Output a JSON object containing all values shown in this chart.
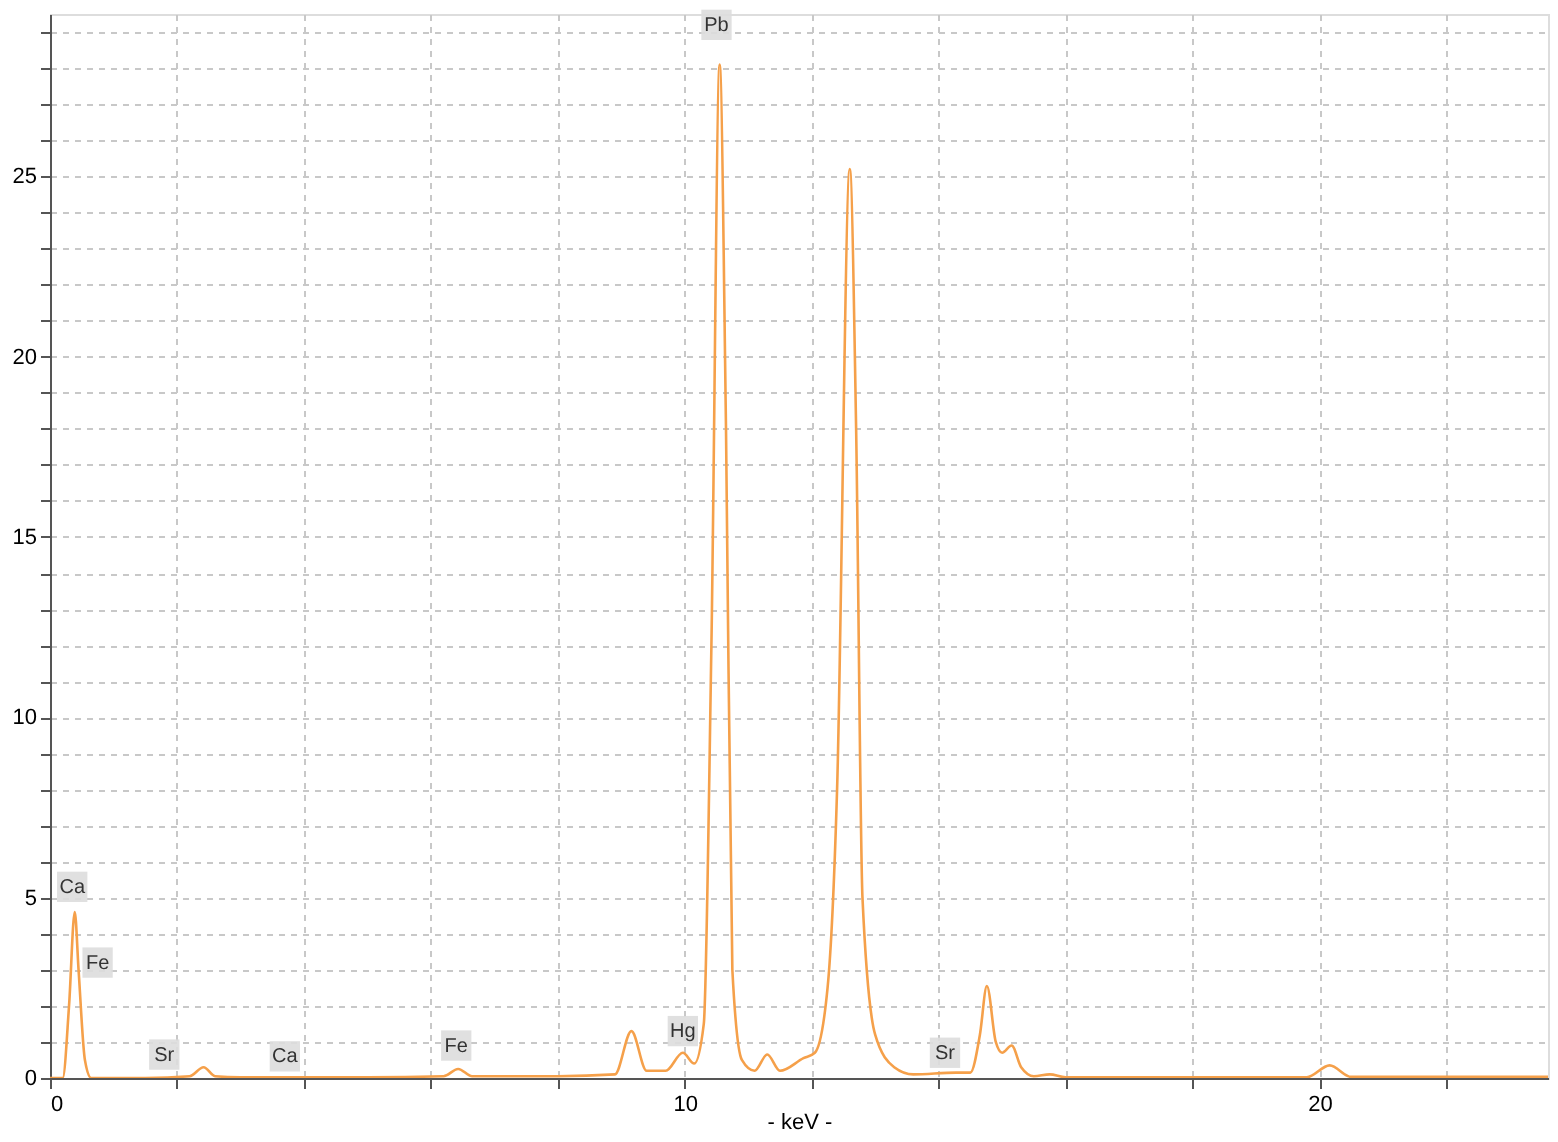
{
  "chart_data": {
    "type": "line",
    "xlabel": "- keV -",
    "xlim": [
      0,
      23.6
    ],
    "ylim": [
      0,
      29.5
    ],
    "xticks": [
      0,
      {
        "value": 2,
        "label": null
      },
      {
        "value": 4,
        "label": null
      },
      {
        "value": 6,
        "label": null
      },
      {
        "value": 8,
        "label": null
      },
      10,
      {
        "value": 12,
        "label": null
      },
      {
        "value": 14,
        "label": null
      },
      {
        "value": 16,
        "label": null
      },
      {
        "value": 18,
        "label": null
      },
      20,
      {
        "value": 22,
        "label": null
      }
    ],
    "yticks": [
      0,
      {
        "value": 1,
        "label": null
      },
      {
        "value": 2,
        "label": null
      },
      {
        "value": 3,
        "label": null
      },
      {
        "value": 4,
        "label": null
      },
      5,
      {
        "value": 6,
        "label": null
      },
      {
        "value": 7,
        "label": null
      },
      {
        "value": 8,
        "label": null
      },
      {
        "value": 9,
        "label": null
      },
      10,
      {
        "value": 11,
        "label": null
      },
      {
        "value": 12,
        "label": null
      },
      {
        "value": 13,
        "label": null
      },
      {
        "value": 14,
        "label": null
      },
      15,
      {
        "value": 16,
        "label": null
      },
      {
        "value": 17,
        "label": null
      },
      {
        "value": 18,
        "label": null
      },
      {
        "value": 19,
        "label": null
      },
      20,
      {
        "value": 21,
        "label": null
      },
      {
        "value": 22,
        "label": null
      },
      {
        "value": 23,
        "label": null
      },
      {
        "value": 24,
        "label": null
      },
      25,
      {
        "value": 26,
        "label": null
      },
      {
        "value": 27,
        "label": null
      },
      {
        "value": 28,
        "label": null
      },
      {
        "value": 29,
        "label": null
      }
    ],
    "grid": true,
    "line_style": "solid",
    "marker": "none",
    "x": [
      0,
      0.2,
      0.3,
      0.39,
      0.45,
      0.55,
      0.65,
      1.5,
      2.2,
      2.42,
      2.6,
      3,
      5,
      6.2,
      6.43,
      6.65,
      8,
      8.9,
      9.16,
      9.4,
      9.7,
      9.97,
      10.15,
      10.3,
      10.42,
      10.55,
      10.65,
      10.75,
      10.9,
      11.1,
      11.3,
      11.5,
      11.87,
      12.05,
      12.25,
      12.4,
      12.6,
      12.7,
      12.8,
      13.0,
      13.3,
      13.6,
      14.27,
      14.5,
      14.65,
      14.76,
      14.9,
      15.0,
      15.15,
      15.3,
      15.5,
      15.75,
      16,
      19.8,
      20.16,
      20.5,
      23.6
    ],
    "series": [
      {
        "color": "#f5a04a",
        "values": [
          0,
          0,
          2.0,
          4.6,
          3.0,
          0.5,
          0,
          0,
          0.05,
          0.3,
          0.05,
          0.02,
          0.02,
          0.05,
          0.25,
          0.05,
          0.05,
          0.1,
          1.3,
          0.2,
          0.2,
          0.7,
          0.4,
          1.5,
          12,
          28.1,
          18,
          3,
          0.5,
          0.2,
          0.65,
          0.2,
          0.55,
          0.7,
          2.5,
          8,
          25.2,
          18,
          5,
          1.2,
          0.3,
          0.1,
          0.15,
          0.15,
          1.2,
          2.55,
          1.0,
          0.7,
          0.9,
          0.3,
          0.05,
          0.1,
          0.02,
          0.02,
          0.35,
          0.03,
          0.03
        ]
      }
    ],
    "annotations": [
      {
        "text": "Ca",
        "x": 0.35,
        "y": 5.3
      },
      {
        "text": "Fe",
        "x": 0.75,
        "y": 3.2
      },
      {
        "text": "Sr",
        "x": 1.8,
        "y": 0.65
      },
      {
        "text": "Ca",
        "x": 3.7,
        "y": 0.6
      },
      {
        "text": "Fe",
        "x": 6.4,
        "y": 0.9
      },
      {
        "text": "Hg",
        "x": 9.97,
        "y": 1.3
      },
      {
        "text": "Pb",
        "x": 10.5,
        "y": 29.2
      },
      {
        "text": "Sr",
        "x": 14.1,
        "y": 0.7
      }
    ]
  }
}
